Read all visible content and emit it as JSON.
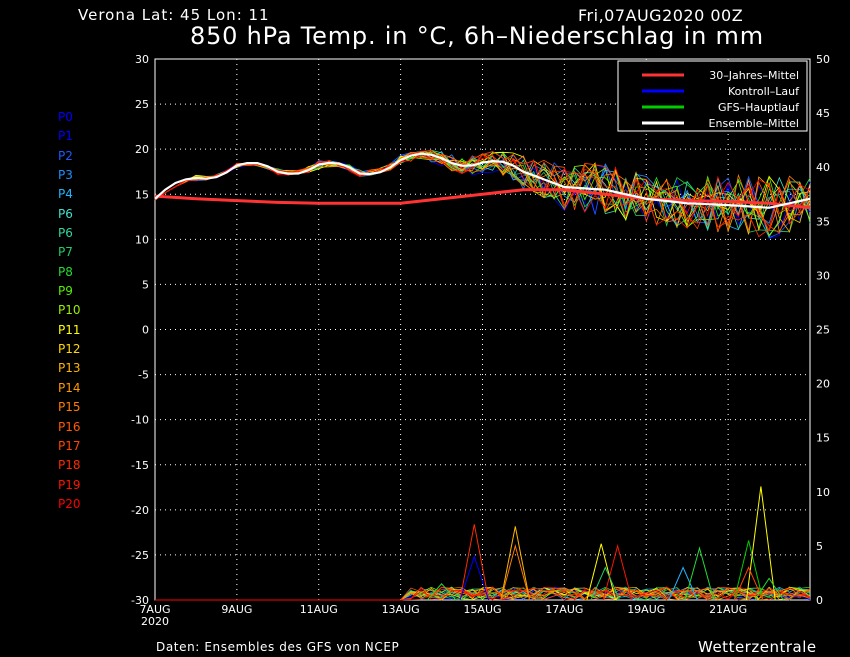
{
  "header": {
    "location": "Verona   Lat: 45 Lon: 11",
    "run_date": "Fri,07AUG2020 00Z",
    "title": "850 hPa Temp. in °C, 6h–Niederschlag in mm"
  },
  "footer": {
    "source": "Daten: Ensembles des GFS von NCEP",
    "brand": "Wetterzentrale"
  },
  "members": [
    {
      "label": "P0",
      "color": "#0000ff"
    },
    {
      "label": "P1",
      "color": "#0000ff"
    },
    {
      "label": "P2",
      "color": "#1e5aff"
    },
    {
      "label": "P3",
      "color": "#1e90ff"
    },
    {
      "label": "P4",
      "color": "#22b4ff"
    },
    {
      "label": "P6",
      "color": "#40e0d0"
    },
    {
      "label": "P6",
      "color": "#2fd89a"
    },
    {
      "label": "P7",
      "color": "#22cc66"
    },
    {
      "label": "P8",
      "color": "#22dd33"
    },
    {
      "label": "P9",
      "color": "#55ee00"
    },
    {
      "label": "P10",
      "color": "#99ee00"
    },
    {
      "label": "P11",
      "color": "#ffff00"
    },
    {
      "label": "P12",
      "color": "#ffd800"
    },
    {
      "label": "P13",
      "color": "#ffb400"
    },
    {
      "label": "P14",
      "color": "#ff9900"
    },
    {
      "label": "P15",
      "color": "#ff7a00"
    },
    {
      "label": "P16",
      "color": "#ff5a00"
    },
    {
      "label": "P17",
      "color": "#ff4400"
    },
    {
      "label": "P18",
      "color": "#ff2a00"
    },
    {
      "label": "P19",
      "color": "#ff1400"
    },
    {
      "label": "P20",
      "color": "#ff0000"
    }
  ],
  "chart_data": {
    "type": "line",
    "x_ticks": [
      "7AUG\n2020",
      "9AUG",
      "11AUG",
      "13AUG",
      "15AUG",
      "17AUG",
      "19AUG",
      "21AUG"
    ],
    "x_range_days": [
      0,
      16
    ],
    "y_left_range": [
      -30,
      30
    ],
    "y_left_ticks": [
      30,
      25,
      20,
      15,
      10,
      5,
      0,
      -5,
      -10,
      -15,
      -20,
      -25,
      -30
    ],
    "y_right_range": [
      0,
      50
    ],
    "y_right_ticks": [
      50,
      45,
      40,
      35,
      30,
      25,
      20,
      15,
      10,
      5,
      0
    ],
    "grid": true,
    "legend_position": "top-right",
    "legend": [
      {
        "name": "30–Jahres–Mittel",
        "color": "#ff3333"
      },
      {
        "name": "Kontroll–Lauf",
        "color": "#0000ff"
      },
      {
        "name": "GFS–Hauptlauf",
        "color": "#00cc00"
      },
      {
        "name": "Ensemble–Mittel",
        "color": "#ffffff"
      }
    ],
    "climate_mean": [
      14.8,
      14.5,
      14.3,
      14.1,
      14.0,
      14.0,
      14.0,
      14.5,
      15.0,
      15.5,
      15.5,
      15.0,
      14.5,
      14.3,
      14.2,
      14.0,
      13.5
    ],
    "ensemble_mean_temp": [
      14.5,
      16.8,
      18.2,
      17.5,
      18.3,
      17.3,
      18.8,
      19.0,
      18.5,
      17.5,
      15.8,
      15.5,
      14.5,
      14.0,
      13.8,
      13.5,
      14.5
    ],
    "temp_spread_upper": [
      14.5,
      17.2,
      18.5,
      18.0,
      19.0,
      18.0,
      19.5,
      20.0,
      19.8,
      19.5,
      19.5,
      19.0,
      18.0,
      17.5,
      17.5,
      17.0,
      17.0
    ],
    "temp_spread_lower": [
      14.0,
      16.2,
      17.8,
      17.0,
      17.6,
      16.8,
      18.0,
      17.5,
      16.5,
      14.0,
      12.0,
      10.5,
      10.0,
      9.5,
      8.0,
      6.8,
      9.0
    ],
    "precip_peaks_mm": [
      {
        "day": 7.8,
        "value": 7.0,
        "color": "#ff2a00"
      },
      {
        "day": 8.8,
        "value": 6.8,
        "color": "#ffb400"
      },
      {
        "day": 8.8,
        "value": 5.0,
        "color": "#ff7a00"
      },
      {
        "day": 7.8,
        "value": 4.0,
        "color": "#0000ff"
      },
      {
        "day": 7.0,
        "value": 1.5,
        "color": "#22dd33"
      },
      {
        "day": 10.9,
        "value": 5.2,
        "color": "#ffff00"
      },
      {
        "day": 11.3,
        "value": 5.0,
        "color": "#ff1400"
      },
      {
        "day": 11.0,
        "value": 3.0,
        "color": "#22cc66"
      },
      {
        "day": 12.9,
        "value": 3.0,
        "color": "#22b4ff"
      },
      {
        "day": 13.3,
        "value": 4.8,
        "color": "#22dd33"
      },
      {
        "day": 14.5,
        "value": 5.5,
        "color": "#00cc00"
      },
      {
        "day": 14.8,
        "value": 10.5,
        "color": "#ffff00"
      },
      {
        "day": 14.5,
        "value": 3.0,
        "color": "#ff4400"
      },
      {
        "day": 15.0,
        "value": 2.0,
        "color": "#22dd33"
      }
    ]
  }
}
